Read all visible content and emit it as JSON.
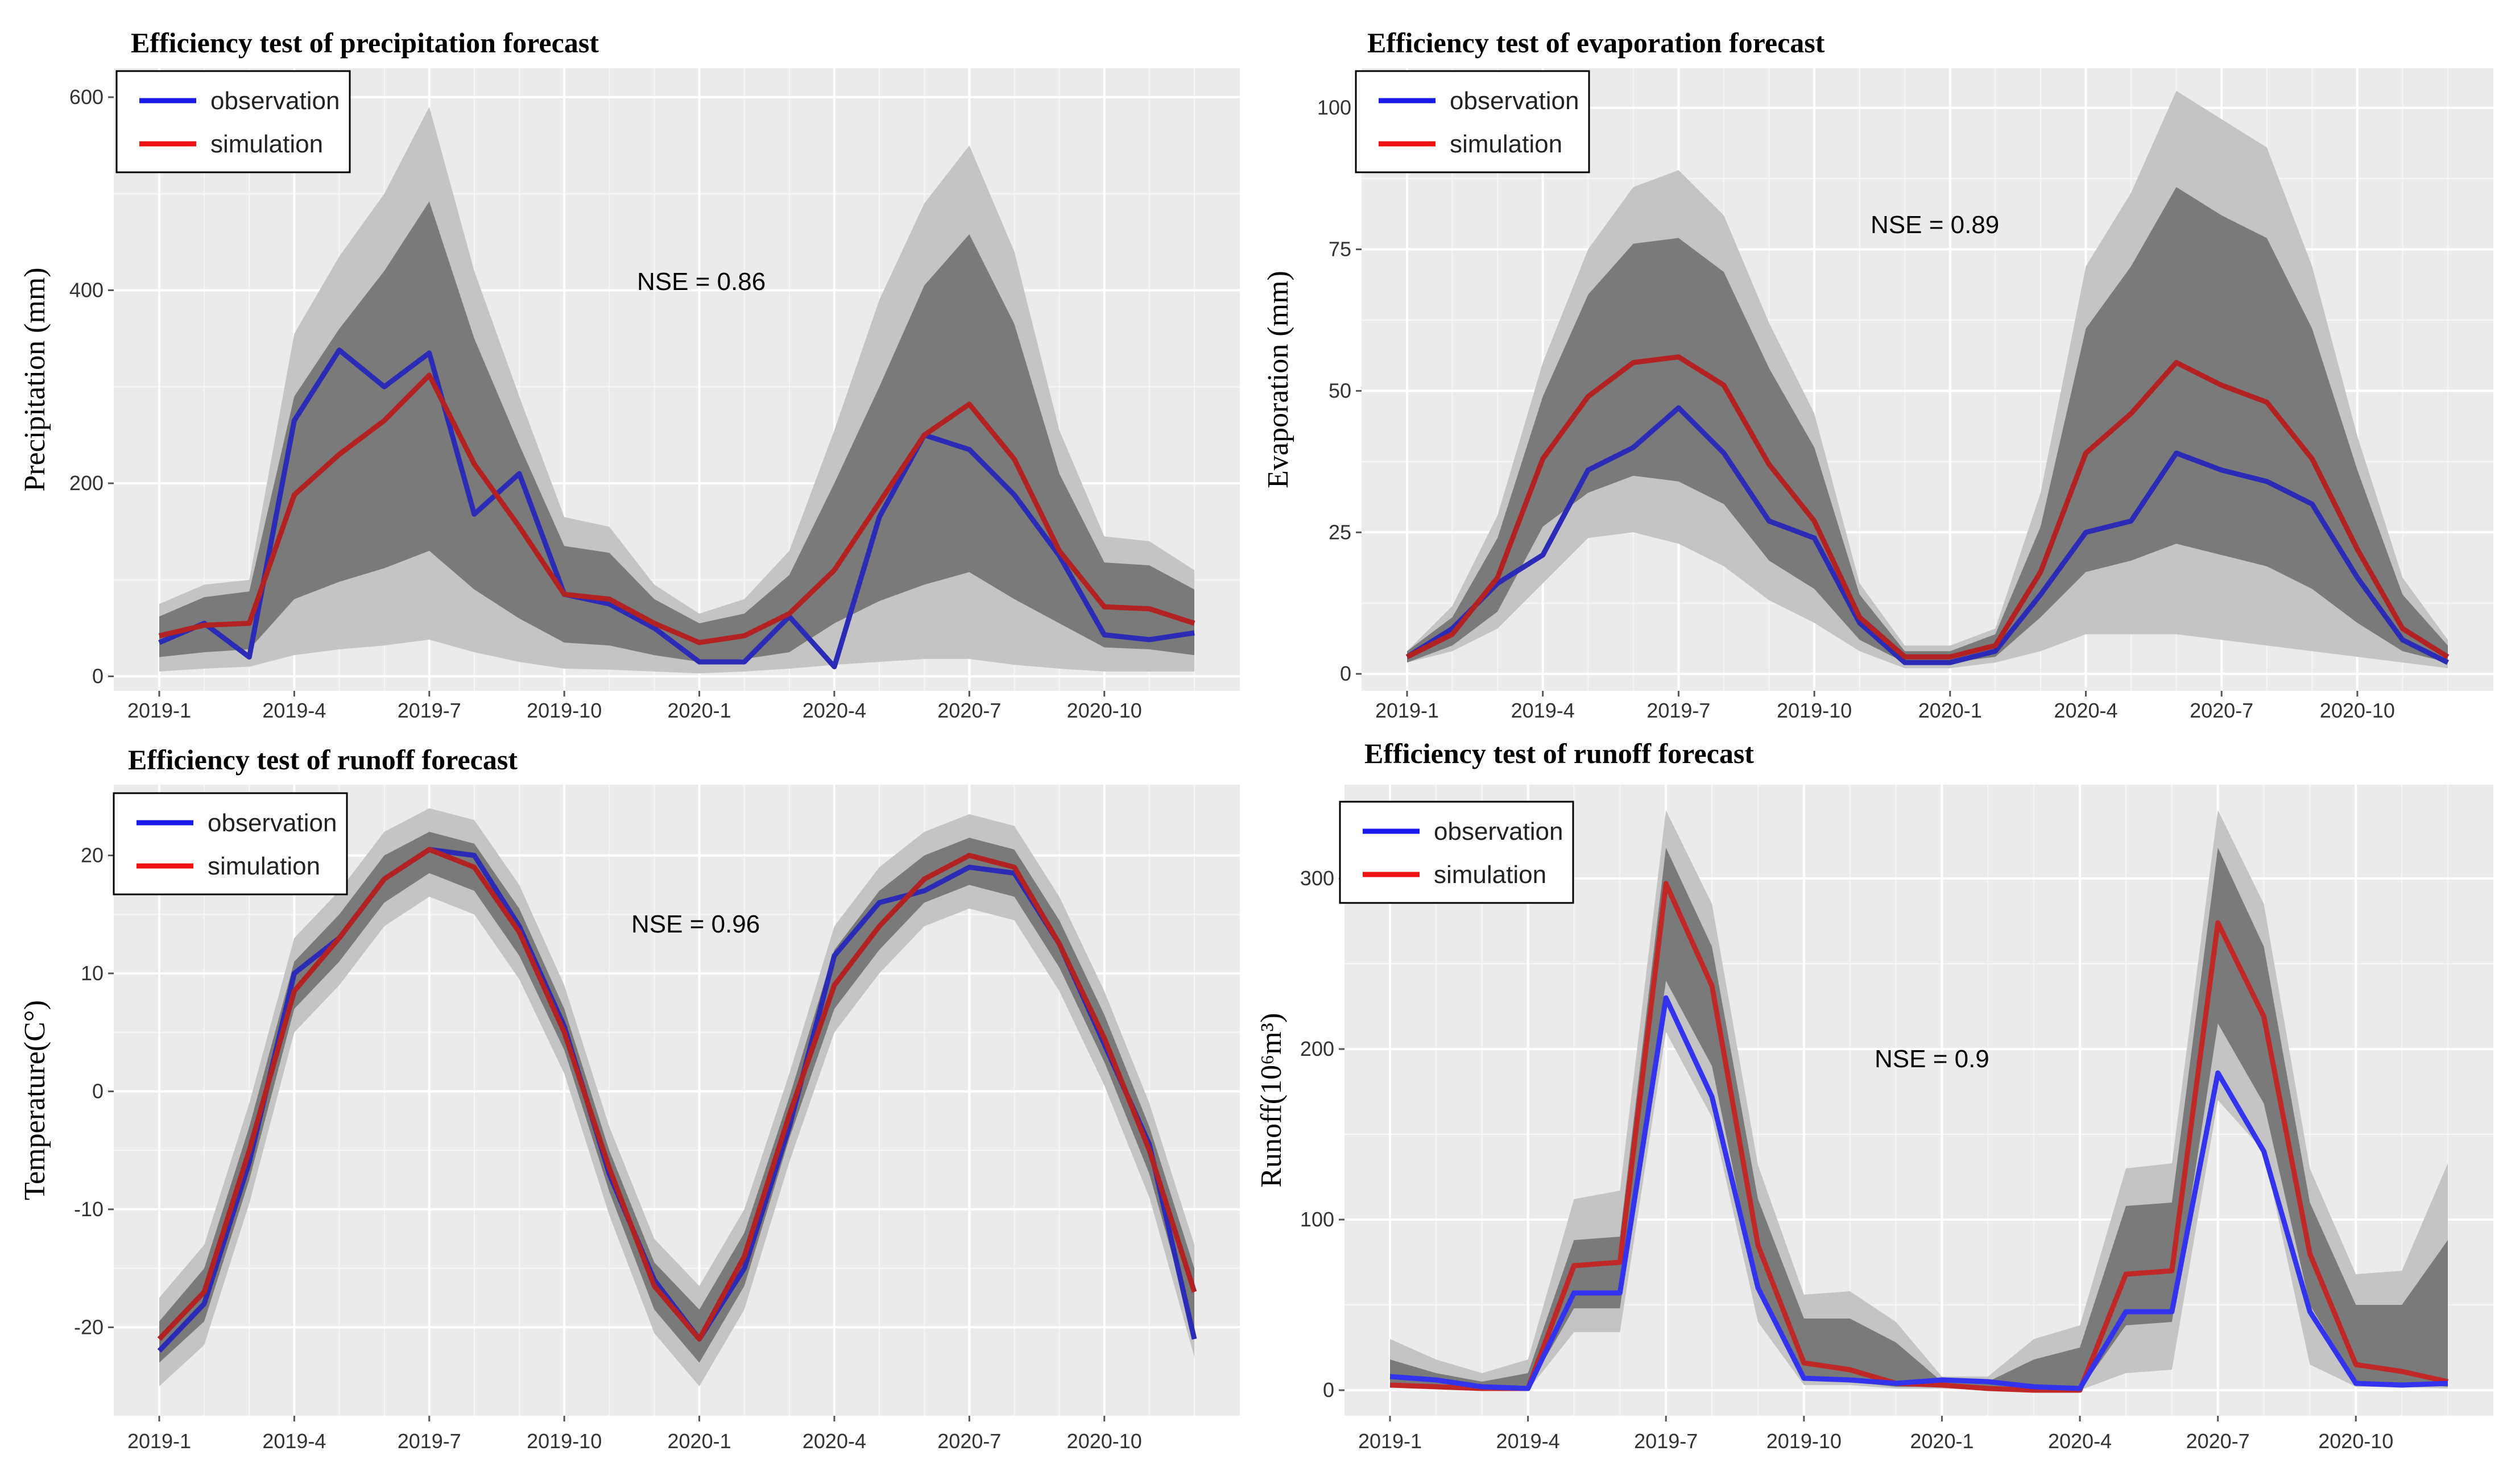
{
  "chart_data": [
    {
      "type": "line",
      "title": "Efficiency test of precipitation forecast",
      "xlabel": "",
      "ylabel": "Precipitation (mm)",
      "annotation": "NSE = 0.86",
      "ylim": [
        -15,
        630
      ],
      "yticks": [
        0,
        200,
        400,
        600
      ],
      "x": [
        "2019-1",
        "2019-2",
        "2019-3",
        "2019-4",
        "2019-5",
        "2019-6",
        "2019-7",
        "2019-8",
        "2019-9",
        "2019-10",
        "2019-11",
        "2019-12",
        "2020-1",
        "2020-2",
        "2020-3",
        "2020-4",
        "2020-5",
        "2020-6",
        "2020-7",
        "2020-8",
        "2020-9",
        "2020-10",
        "2020-11",
        "2020-12"
      ],
      "xticks": [
        "2019-1",
        "2019-4",
        "2019-7",
        "2019-10",
        "2020-1",
        "2020-4",
        "2020-7",
        "2020-10"
      ],
      "legend_position": "top-left",
      "series": [
        {
          "name": "observation",
          "color": "#2b2bb5",
          "values": [
            35,
            55,
            20,
            265,
            338,
            300,
            335,
            168,
            210,
            85,
            75,
            50,
            15,
            15,
            62,
            10,
            165,
            250,
            235,
            188,
            125,
            43,
            38,
            45
          ]
        },
        {
          "name": "simulation",
          "color": "#b22222",
          "values": [
            42,
            53,
            55,
            188,
            230,
            265,
            312,
            220,
            155,
            85,
            80,
            55,
            35,
            42,
            65,
            110,
            180,
            250,
            282,
            225,
            130,
            72,
            70,
            55
          ]
        }
      ],
      "bands": {
        "outer_upper": [
          75,
          95,
          100,
          355,
          435,
          500,
          590,
          420,
          290,
          165,
          155,
          95,
          65,
          80,
          130,
          255,
          390,
          490,
          550,
          440,
          255,
          145,
          140,
          110
        ],
        "inner_upper": [
          62,
          82,
          88,
          290,
          360,
          420,
          492,
          350,
          240,
          135,
          128,
          80,
          55,
          65,
          105,
          200,
          300,
          405,
          458,
          365,
          210,
          118,
          115,
          90
        ],
        "inner_lower": [
          20,
          25,
          28,
          80,
          98,
          112,
          130,
          90,
          60,
          35,
          32,
          22,
          15,
          18,
          25,
          55,
          78,
          95,
          108,
          80,
          55,
          30,
          28,
          22
        ],
        "outer_lower": [
          5,
          8,
          10,
          22,
          28,
          32,
          38,
          25,
          15,
          8,
          7,
          5,
          3,
          5,
          8,
          12,
          15,
          18,
          18,
          12,
          8,
          5,
          5,
          5
        ]
      }
    },
    {
      "type": "line",
      "title": "Efficiency test of evaporation forecast",
      "xlabel": "",
      "ylabel": "Evaporation (mm)",
      "annotation": "NSE = 0.89",
      "ylim": [
        -3,
        107
      ],
      "yticks": [
        0,
        25,
        50,
        75,
        100
      ],
      "x": [
        "2019-1",
        "2019-2",
        "2019-3",
        "2019-4",
        "2019-5",
        "2019-6",
        "2019-7",
        "2019-8",
        "2019-9",
        "2019-10",
        "2019-11",
        "2019-12",
        "2020-1",
        "2020-2",
        "2020-3",
        "2020-4",
        "2020-5",
        "2020-6",
        "2020-7",
        "2020-8",
        "2020-9",
        "2020-10",
        "2020-11",
        "2020-12"
      ],
      "xticks": [
        "2019-1",
        "2019-4",
        "2019-7",
        "2019-10",
        "2020-1",
        "2020-4",
        "2020-7",
        "2020-10"
      ],
      "legend_position": "top-left",
      "series": [
        {
          "name": "observation",
          "color": "#2b2bb5",
          "values": [
            3,
            8,
            16,
            21,
            36,
            40,
            47,
            39,
            27,
            24,
            9,
            2,
            2,
            4,
            14,
            25,
            27,
            39,
            36,
            34,
            30,
            17,
            6,
            2
          ]
        },
        {
          "name": "simulation",
          "color": "#b22222",
          "values": [
            3,
            7,
            17,
            38,
            49,
            55,
            56,
            51,
            37,
            27,
            10,
            3,
            3,
            5,
            18,
            39,
            46,
            55,
            51,
            48,
            38,
            22,
            8,
            3
          ]
        }
      ],
      "bands": {
        "outer_upper": [
          4,
          12,
          28,
          55,
          75,
          86,
          89,
          81,
          62,
          46,
          16,
          5,
          5,
          8,
          32,
          72,
          85,
          103,
          98,
          93,
          72,
          42,
          17,
          6
        ],
        "inner_upper": [
          4,
          10,
          24,
          49,
          67,
          76,
          77,
          71,
          54,
          40,
          14,
          4,
          4,
          7,
          26,
          61,
          72,
          86,
          81,
          77,
          61,
          36,
          14,
          5
        ],
        "inner_lower": [
          2,
          5,
          11,
          26,
          32,
          35,
          34,
          30,
          20,
          15,
          6,
          2,
          2,
          3,
          10,
          18,
          20,
          23,
          21,
          19,
          15,
          9,
          4,
          2
        ],
        "outer_lower": [
          2,
          4,
          8,
          16,
          24,
          25,
          23,
          19,
          13,
          9,
          4,
          1,
          1,
          2,
          4,
          7,
          7,
          7,
          6,
          5,
          4,
          3,
          2,
          1
        ]
      }
    },
    {
      "type": "line",
      "title": "Efficiency test of runoff forecast",
      "xlabel": "",
      "ylabel": "Temperature(C°)",
      "annotation": "NSE = 0.96",
      "ylim": [
        -27.5,
        26
      ],
      "yticks": [
        -20,
        -10,
        0,
        10,
        20
      ],
      "x": [
        "2019-1",
        "2019-2",
        "2019-3",
        "2019-4",
        "2019-5",
        "2019-6",
        "2019-7",
        "2019-8",
        "2019-9",
        "2019-10",
        "2019-11",
        "2019-12",
        "2020-1",
        "2020-2",
        "2020-3",
        "2020-4",
        "2020-5",
        "2020-6",
        "2020-7",
        "2020-8",
        "2020-9",
        "2020-10",
        "2020-11",
        "2020-12"
      ],
      "xticks": [
        "2019-1",
        "2019-4",
        "2019-7",
        "2019-10",
        "2020-1",
        "2020-4",
        "2020-7",
        "2020-10"
      ],
      "legend_position": "top-left",
      "series": [
        {
          "name": "observation",
          "color": "#2b2bb5",
          "values": [
            -22,
            -18,
            -6,
            10,
            13,
            18,
            20.5,
            20,
            14,
            5.5,
            -7,
            -16,
            -21,
            -15,
            -3,
            11.5,
            16,
            17,
            19,
            18.5,
            12.5,
            4,
            -4.5,
            -21
          ]
        },
        {
          "name": "simulation",
          "color": "#b22222",
          "values": [
            -21,
            -17,
            -5,
            8.5,
            13,
            18,
            20.5,
            19,
            13.5,
            5,
            -6.5,
            -16.5,
            -21,
            -14,
            -2,
            9,
            14,
            18,
            20,
            19,
            12.5,
            4.5,
            -5,
            -17
          ]
        }
      ],
      "bands": {
        "outer_upper": [
          -17.5,
          -13,
          -1,
          13,
          17,
          22,
          24,
          23,
          17.5,
          9,
          -3,
          -12.5,
          -16.5,
          -10,
          1.5,
          14,
          19,
          22,
          23.5,
          22.5,
          16.5,
          8.5,
          -1,
          -13
        ],
        "inner_upper": [
          -19.5,
          -15,
          -3,
          11,
          15,
          20,
          22,
          21,
          15.5,
          7,
          -5,
          -14.5,
          -18.5,
          -12,
          -0.5,
          12,
          17,
          20,
          21.5,
          20.5,
          14.5,
          6.5,
          -3,
          -15
        ],
        "inner_lower": [
          -23,
          -19.5,
          -7.5,
          7,
          11,
          16,
          18.5,
          17,
          11.5,
          3.5,
          -8.5,
          -18.5,
          -23,
          -16.5,
          -4,
          7,
          12,
          16,
          17.5,
          16.5,
          10.5,
          2.5,
          -7,
          -20.5
        ],
        "outer_lower": [
          -25,
          -21.5,
          -9.5,
          5,
          9,
          14,
          16.5,
          15,
          9.5,
          1.5,
          -10.5,
          -20.5,
          -25,
          -18.5,
          -6,
          5,
          10,
          14,
          15.5,
          14.5,
          8.5,
          0.5,
          -9,
          -22.5
        ]
      }
    },
    {
      "type": "line",
      "title": "Efficiency test of runoff forecast",
      "xlabel": "",
      "ylabel": "Runoff(10⁶m³)",
      "annotation": "NSE = 0.9",
      "ylim": [
        -15,
        355
      ],
      "yticks": [
        0,
        100,
        200,
        300
      ],
      "x": [
        "2019-1",
        "2019-2",
        "2019-3",
        "2019-4",
        "2019-5",
        "2019-6",
        "2019-7",
        "2019-8",
        "2019-9",
        "2019-10",
        "2019-11",
        "2019-12",
        "2020-1",
        "2020-2",
        "2020-3",
        "2020-4",
        "2020-5",
        "2020-6",
        "2020-7",
        "2020-8",
        "2020-9",
        "2020-10",
        "2020-11",
        "2020-12"
      ],
      "xticks": [
        "2019-1",
        "2019-4",
        "2019-7",
        "2019-10",
        "2020-1",
        "2020-4",
        "2020-7",
        "2020-10"
      ],
      "legend_position": "top-left",
      "series": [
        {
          "name": "observation",
          "color": "#2b2bb5",
          "values": [
            8,
            6,
            2,
            1,
            57,
            57,
            230,
            172,
            60,
            7,
            6,
            4,
            6,
            5,
            2,
            1,
            46,
            46,
            186,
            140,
            46,
            4,
            3,
            4
          ]
        },
        {
          "name": "simulation",
          "color": "#b22222",
          "values": [
            3,
            2,
            1,
            1,
            73,
            75,
            297,
            237,
            85,
            16,
            12,
            4,
            3,
            1,
            0,
            0,
            68,
            70,
            274,
            219,
            80,
            15,
            11,
            5
          ]
        }
      ],
      "bands": {
        "outer_upper": [
          30,
          18,
          10,
          18,
          112,
          117,
          340,
          285,
          132,
          56,
          58,
          40,
          8,
          8,
          30,
          38,
          130,
          133,
          340,
          285,
          130,
          68,
          70,
          133
        ],
        "inner_upper": [
          18,
          10,
          5,
          10,
          88,
          90,
          318,
          260,
          112,
          42,
          42,
          28,
          5,
          5,
          18,
          25,
          108,
          110,
          318,
          260,
          110,
          50,
          50,
          88
        ],
        "inner_lower": [
          4,
          3,
          1,
          1,
          48,
          48,
          240,
          190,
          58,
          6,
          5,
          2,
          2,
          1,
          0,
          0,
          38,
          40,
          215,
          168,
          50,
          5,
          4,
          2
        ],
        "outer_lower": [
          2,
          1,
          0,
          0,
          34,
          34,
          210,
          160,
          40,
          3,
          3,
          1,
          1,
          0,
          0,
          0,
          10,
          12,
          170,
          140,
          15,
          2,
          2,
          1
        ]
      }
    }
  ]
}
